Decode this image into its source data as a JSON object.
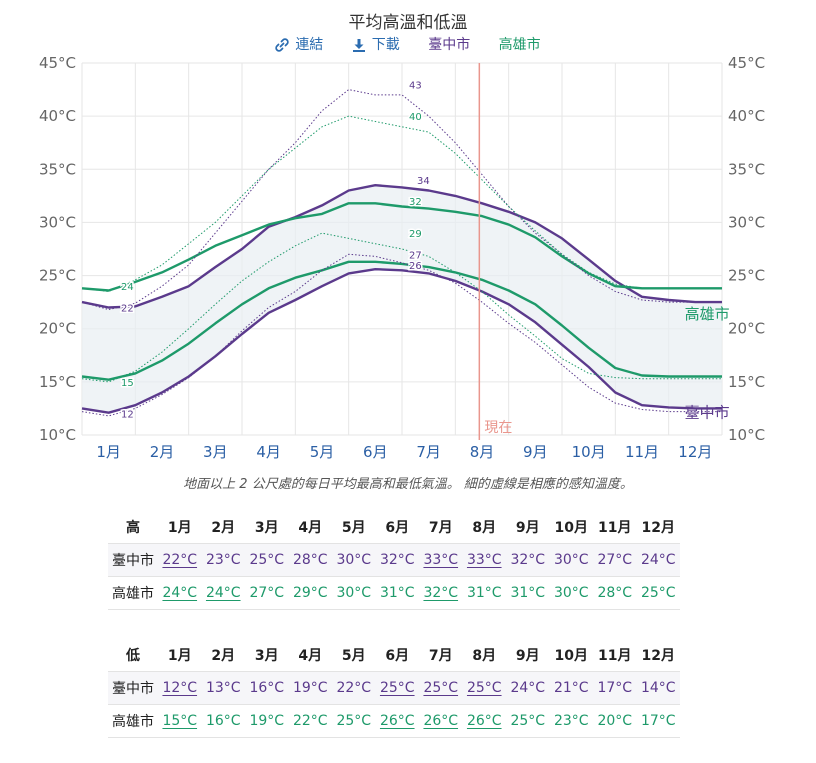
{
  "title": "平均高溫和低溫",
  "toolbar": {
    "link_label": "連結",
    "download_label": "下載",
    "city1": "臺中市",
    "city2": "高雄市"
  },
  "colors": {
    "city1": "#5b3a8c",
    "city2": "#1e9a6a",
    "now_line": "#e9968d",
    "band": "#e8eef2",
    "grid": "#e6e6e6"
  },
  "caption": "地面以上 2 公尺處的每日平均最高和最低氣溫。 細的虛線是相應的感知溫度。",
  "chart_data": {
    "type": "line",
    "title": "平均高溫和低溫",
    "xlabel": "",
    "ylabel": "",
    "ylim": [
      10,
      45
    ],
    "yticks": [
      "10°C",
      "15°C",
      "20°C",
      "25°C",
      "30°C",
      "35°C",
      "40°C",
      "45°C"
    ],
    "categories": [
      "1月",
      "2月",
      "3月",
      "4月",
      "5月",
      "6月",
      "7月",
      "8月",
      "9月",
      "10月",
      "11月",
      "12月"
    ],
    "now_label": "現在",
    "now_month_position": 7.45,
    "grid": true,
    "x": [
      0.0,
      0.5,
      1.0,
      1.5,
      2.0,
      2.5,
      3.0,
      3.5,
      4.0,
      4.5,
      5.0,
      5.5,
      6.0,
      6.5,
      7.0,
      7.5,
      8.0,
      8.5,
      9.0,
      9.5,
      10.0,
      10.5,
      11.0,
      11.5,
      12.0
    ],
    "series": [
      {
        "name": "臺中市",
        "kind": "high",
        "style": "solid",
        "color": "#5b3a8c",
        "values": [
          22.5,
          22.0,
          22.1,
          23.0,
          24.0,
          25.8,
          27.5,
          29.6,
          30.5,
          31.6,
          33.0,
          33.5,
          33.3,
          33.0,
          32.5,
          31.8,
          31.0,
          30.0,
          28.5,
          26.5,
          24.5,
          23.0,
          22.7,
          22.5,
          22.5
        ]
      },
      {
        "name": "高雄市",
        "kind": "high",
        "style": "solid",
        "color": "#1e9a6a",
        "values": [
          23.8,
          23.6,
          24.4,
          25.3,
          26.5,
          27.8,
          28.8,
          29.8,
          30.4,
          30.8,
          31.8,
          31.8,
          31.5,
          31.3,
          31.0,
          30.6,
          29.8,
          28.6,
          26.8,
          25.2,
          24.0,
          23.8,
          23.8,
          23.8,
          23.8
        ]
      },
      {
        "name": "臺中市",
        "kind": "low",
        "style": "solid",
        "color": "#5b3a8c",
        "values": [
          12.5,
          12.1,
          12.8,
          14.0,
          15.5,
          17.4,
          19.5,
          21.5,
          22.7,
          24.0,
          25.2,
          25.6,
          25.5,
          25.2,
          24.5,
          23.5,
          22.3,
          20.6,
          18.5,
          16.4,
          14.0,
          12.8,
          12.6,
          12.5,
          12.5
        ]
      },
      {
        "name": "高雄市",
        "kind": "low",
        "style": "solid",
        "color": "#1e9a6a",
        "values": [
          15.5,
          15.2,
          15.8,
          17.0,
          18.6,
          20.5,
          22.3,
          23.8,
          24.8,
          25.5,
          26.3,
          26.3,
          26.1,
          25.8,
          25.3,
          24.6,
          23.6,
          22.3,
          20.3,
          18.2,
          16.3,
          15.6,
          15.5,
          15.5,
          15.5
        ]
      },
      {
        "name": "臺中市",
        "kind": "feels_high",
        "style": "dotted",
        "color": "#5b3a8c",
        "values": [
          22.5,
          21.8,
          22.4,
          24.0,
          26.0,
          29.0,
          32.0,
          35.0,
          37.5,
          40.5,
          42.5,
          42.0,
          42.0,
          40.0,
          37.5,
          34.5,
          31.5,
          29.0,
          27.0,
          25.0,
          23.5,
          22.7,
          22.5,
          22.5,
          22.5
        ]
      },
      {
        "name": "高雄市",
        "kind": "feels_high",
        "style": "dotted",
        "color": "#1e9a6a",
        "values": [
          23.8,
          23.5,
          24.6,
          26.0,
          28.0,
          30.0,
          32.5,
          35.0,
          37.0,
          39.0,
          40.0,
          39.5,
          39.0,
          38.5,
          36.5,
          34.0,
          31.5,
          29.2,
          27.0,
          25.3,
          24.2,
          23.8,
          23.8,
          23.8,
          23.8
        ]
      },
      {
        "name": "臺中市",
        "kind": "feels_low",
        "style": "dotted",
        "color": "#5b3a8c",
        "values": [
          12.2,
          11.8,
          12.5,
          13.8,
          15.4,
          17.4,
          19.8,
          22.0,
          23.5,
          25.5,
          27.0,
          26.8,
          26.2,
          25.5,
          24.3,
          22.5,
          20.5,
          18.7,
          16.6,
          14.5,
          13.0,
          12.4,
          12.2,
          12.2,
          12.2
        ]
      },
      {
        "name": "高雄市",
        "kind": "feels_low",
        "style": "dotted",
        "color": "#1e9a6a",
        "values": [
          15.3,
          15.0,
          16.0,
          17.8,
          20.0,
          22.3,
          24.5,
          26.3,
          27.8,
          29.0,
          28.5,
          28.0,
          27.5,
          26.8,
          25.3,
          23.5,
          21.3,
          19.3,
          17.2,
          15.8,
          15.4,
          15.3,
          15.3,
          15.3,
          15.3
        ]
      }
    ],
    "annotations": [
      {
        "x": 0.85,
        "y": 24.0,
        "text": "24",
        "color": "#1e9a6a"
      },
      {
        "x": 0.85,
        "y": 22.0,
        "text": "22",
        "color": "#5b3a8c"
      },
      {
        "x": 0.85,
        "y": 15.0,
        "text": "15",
        "color": "#1e9a6a"
      },
      {
        "x": 0.85,
        "y": 12.0,
        "text": "12",
        "color": "#5b3a8c"
      },
      {
        "x": 6.25,
        "y": 43.0,
        "text": "43",
        "color": "#5b3a8c"
      },
      {
        "x": 6.25,
        "y": 40.0,
        "text": "40",
        "color": "#1e9a6a"
      },
      {
        "x": 6.4,
        "y": 34.0,
        "text": "34",
        "color": "#5b3a8c"
      },
      {
        "x": 6.25,
        "y": 32.0,
        "text": "32",
        "color": "#1e9a6a"
      },
      {
        "x": 6.25,
        "y": 29.0,
        "text": "29",
        "color": "#1e9a6a"
      },
      {
        "x": 6.25,
        "y": 27.0,
        "text": "27",
        "color": "#5b3a8c"
      },
      {
        "x": 6.25,
        "y": 26.0,
        "text": "26",
        "color": "#5b3a8c"
      },
      {
        "x": 11.3,
        "y": 21.5,
        "text": "高雄市",
        "color": "#1e9a6a"
      },
      {
        "x": 11.3,
        "y": 12.2,
        "text": "臺中市",
        "color": "#5b3a8c"
      }
    ]
  },
  "high_table": {
    "header": "高",
    "months": [
      "1月",
      "2月",
      "3月",
      "4月",
      "5月",
      "6月",
      "7月",
      "8月",
      "9月",
      "10月",
      "11月",
      "12月"
    ],
    "rows": [
      {
        "city": "臺中市",
        "cls": "c1",
        "values": [
          "22°C",
          "23°C",
          "25°C",
          "28°C",
          "30°C",
          "32°C",
          "33°C",
          "33°C",
          "32°C",
          "30°C",
          "27°C",
          "24°C"
        ],
        "underlined": [
          0,
          6,
          7
        ]
      },
      {
        "city": "高雄市",
        "cls": "c2",
        "values": [
          "24°C",
          "24°C",
          "27°C",
          "29°C",
          "30°C",
          "31°C",
          "32°C",
          "31°C",
          "31°C",
          "30°C",
          "28°C",
          "25°C"
        ],
        "underlined": [
          0,
          1,
          6
        ]
      }
    ]
  },
  "low_table": {
    "header": "低",
    "months": [
      "1月",
      "2月",
      "3月",
      "4月",
      "5月",
      "6月",
      "7月",
      "8月",
      "9月",
      "10月",
      "11月",
      "12月"
    ],
    "rows": [
      {
        "city": "臺中市",
        "cls": "c1",
        "values": [
          "12°C",
          "13°C",
          "16°C",
          "19°C",
          "22°C",
          "25°C",
          "25°C",
          "25°C",
          "24°C",
          "21°C",
          "17°C",
          "14°C"
        ],
        "underlined": [
          0,
          5,
          6,
          7
        ]
      },
      {
        "city": "高雄市",
        "cls": "c2",
        "values": [
          "15°C",
          "16°C",
          "19°C",
          "22°C",
          "25°C",
          "26°C",
          "26°C",
          "26°C",
          "25°C",
          "23°C",
          "20°C",
          "17°C"
        ],
        "underlined": [
          0,
          5,
          6,
          7
        ]
      }
    ]
  }
}
